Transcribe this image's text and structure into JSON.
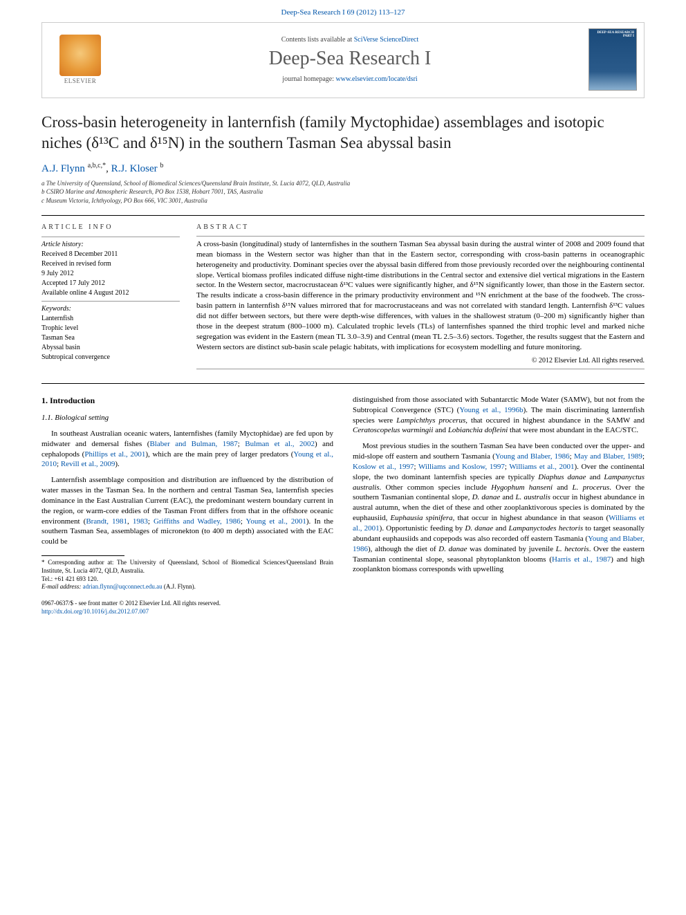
{
  "header": {
    "running_head": "Deep-Sea Research I 69 (2012) 113–127"
  },
  "banner": {
    "publisher": "ELSEVIER",
    "contents_prefix": "Contents lists available at ",
    "contents_link": "SciVerse ScienceDirect",
    "journal_name": "Deep-Sea Research I",
    "homepage_prefix": "journal homepage: ",
    "homepage_url": "www.elsevier.com/locate/dsri",
    "cover_text": "DEEP-SEA RESEARCH PART I"
  },
  "title": "Cross-basin heterogeneity in lanternfish (family Myctophidae) assemblages and isotopic niches (δ¹³C and δ¹⁵N) in the southern Tasman Sea abyssal basin",
  "authors": {
    "list": "A.J. Flynn ",
    "a1_sup": "a,b,c,",
    "star": "*",
    "sep": ", ",
    "a2": "R.J. Kloser ",
    "a2_sup": "b"
  },
  "affiliations": {
    "a": "a The University of Queensland, School of Biomedical Sciences/Queensland Brain Institute, St. Lucia 4072, QLD, Australia",
    "b": "b CSIRO Marine and Atmospheric Research, PO Box 1538, Hobart 7001, TAS, Australia",
    "c": "c Museum Victoria, Ichthyology, PO Box 666, VIC 3001, Australia"
  },
  "article_info": {
    "heading": "ARTICLE INFO",
    "history_label": "Article history:",
    "received": "Received 8 December 2011",
    "revised": "Received in revised form",
    "revised_date": "9 July 2012",
    "accepted": "Accepted 17 July 2012",
    "online": "Available online 4 August 2012",
    "keywords_label": "Keywords:",
    "kw1": "Lanternfish",
    "kw2": "Trophic level",
    "kw3": "Tasman Sea",
    "kw4": "Abyssal basin",
    "kw5": "Subtropical convergence"
  },
  "abstract": {
    "heading": "ABSTRACT",
    "text": "A cross-basin (longitudinal) study of lanternfishes in the southern Tasman Sea abyssal basin during the austral winter of 2008 and 2009 found that mean biomass in the Western sector was higher than that in the Eastern sector, corresponding with cross-basin patterns in oceanographic heterogeneity and productivity. Dominant species over the abyssal basin differed from those previously recorded over the neighbouring continental slope. Vertical biomass profiles indicated diffuse night-time distributions in the Central sector and extensive diel vertical migrations in the Eastern sector. In the Western sector, macrocrustacean δ¹³C values were significantly higher, and δ¹⁵N significantly lower, than those in the Eastern sector. The results indicate a cross-basin difference in the primary productivity environment and ¹⁵N enrichment at the base of the foodweb. The cross-basin pattern in lanternfish δ¹⁵N values mirrored that for macrocrustaceans and was not correlated with standard length. Lanternfish δ¹³C values did not differ between sectors, but there were depth-wise differences, with values in the shallowest stratum (0–200 m) significantly higher than those in the deepest stratum (800–1000 m). Calculated trophic levels (TLs) of lanternfishes spanned the third trophic level and marked niche segregation was evident in the Eastern (mean TL 3.0–3.9) and Central (mean TL 2.5–3.6) sectors. Together, the results suggest that the Eastern and Western sectors are distinct sub-basin scale pelagic habitats, with implications for ecosystem modelling and future monitoring.",
    "copyright": "© 2012 Elsevier Ltd. All rights reserved."
  },
  "body": {
    "section1": "1. Introduction",
    "sub11": "1.1. Biological setting",
    "p1a": "In southeast Australian oceanic waters, lanternfishes (family Myctophidae) are fed upon by midwater and demersal fishes (",
    "p1_ref1": "Blaber and Bulman, 1987",
    "p1b": "; ",
    "p1_ref2": "Bulman et al., 2002",
    "p1c": ") and cephalopods (",
    "p1_ref3": "Phillips et al., 2001",
    "p1d": "), which are the main prey of larger predators (",
    "p1_ref4": "Young et al., 2010",
    "p1e": "; ",
    "p1_ref5": "Revill et al., 2009",
    "p1f": ").",
    "p2a": "Lanternfish assemblage composition and distribution are influenced by the distribution of water masses in the Tasman Sea. In the northern and central Tasman Sea, lanternfish species dominance in the East Australian Current (EAC), the predominant western boundary current in the region, or warm-core eddies of the Tasman Front differs from that in the offshore oceanic environment (",
    "p2_ref1": "Brandt, 1981",
    "p2b": ", ",
    "p2_ref2": "1983",
    "p2c": "; ",
    "p2_ref3": "Griffiths and Wadley, 1986",
    "p2d": "; ",
    "p2_ref4": "Young et al., 2001",
    "p2e": "). In the southern Tasman Sea, assemblages of micronekton (to 400 m depth) associated with the EAC could be",
    "p3a": "distinguished from those associated with Subantarctic Mode Water (SAMW), but not from the Subtropical Convergence (STC) (",
    "p3_ref1": "Young et al., 1996b",
    "p3b": "). The main discriminating lanternfish species were ",
    "p3_sp1": "Lampichthys procerus",
    "p3c": ", that occured in highest abundance in the SAMW and ",
    "p3_sp2": "Ceratoscopelus warmingii",
    "p3d": " and ",
    "p3_sp3": "Lobianchia dofleini",
    "p3e": " that were most abundant in the EAC/STC.",
    "p4a": "Most previous studies in the southern Tasman Sea have been conducted over the upper- and mid-slope off eastern and southern Tasmania (",
    "p4_ref1": "Young and Blaber, 1986",
    "p4b": "; ",
    "p4_ref2": "May and Blaber, 1989",
    "p4c": "; ",
    "p4_ref3": "Koslow et al., 1997",
    "p4d": "; ",
    "p4_ref4": "Williams and Koslow, 1997",
    "p4e": "; ",
    "p4_ref5": "Williams et al., 2001",
    "p4f": "). Over the continental slope, the two dominant lanternfish species are typically ",
    "p4_sp1": "Diaphus danae",
    "p4g": " and ",
    "p4_sp2": "Lampanyctus australis",
    "p4h": ". Other common species include ",
    "p4_sp3": "Hygophum hanseni",
    "p4i": " and ",
    "p4_sp4": "L. procerus",
    "p4j": ". Over the southern Tasmanian continental slope, ",
    "p4_sp5": "D. danae",
    "p4k": " and ",
    "p4_sp6": "L. australis",
    "p4l": " occur in highest abundance in austral autumn, when the diet of these and other zooplanktivorous species is dominated by the euphausiid, ",
    "p4_sp7": "Euphausia spinifera",
    "p4m": ", that occur in highest abundance in that season (",
    "p4_ref6": "Williams et al., 2001",
    "p4n": "). Opportunistic feeding by ",
    "p4_sp8": "D. danae",
    "p4o": " and ",
    "p4_sp9": "Lampanyctodes hectoris",
    "p4p": " to target seasonally abundant euphausiids and copepods was also recorded off eastern Tasmania (",
    "p4_ref7": "Young and Blaber, 1986",
    "p4q": "), although the diet of ",
    "p4_sp10": "D. danae",
    "p4r": " was dominated by juvenile ",
    "p4_sp11": "L. hectoris",
    "p4s": ". Over the eastern Tasmanian continental slope, seasonal phytoplankton blooms (",
    "p4_ref8": "Harris et al., 1987",
    "p4t": ") and high zooplankton biomass corresponds with upwelling"
  },
  "footnote": {
    "corr_label": "* Corresponding author at: The University of Queensland, School of Biomedical Sciences/Queensland Brain Institute, St. Lucia 4072, QLD, Australia.",
    "tel": "Tel.: +61 421 693 120.",
    "email_label": "E-mail address: ",
    "email": "adrian.flynn@uqconnect.edu.au",
    "email_suffix": " (A.J. Flynn)."
  },
  "bottom": {
    "issn": "0967-0637/$ - see front matter © 2012 Elsevier Ltd. All rights reserved.",
    "doi": "http://dx.doi.org/10.1016/j.dsr.2012.07.007"
  },
  "colors": {
    "link": "#0055aa",
    "text": "#000000",
    "heading_gray": "#5a5a5a"
  }
}
